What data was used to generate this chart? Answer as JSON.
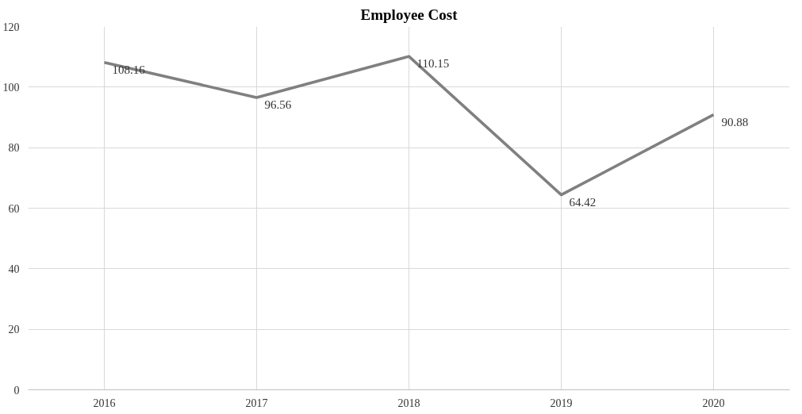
{
  "chart_data": {
    "type": "line",
    "title": "Employee Cost",
    "categories": [
      "2016",
      "2017",
      "2018",
      "2019",
      "2020"
    ],
    "series": [
      {
        "color": "#808080",
        "values": [
          108.16,
          96.56,
          110.15,
          64.42,
          90.88
        ]
      }
    ],
    "ylim": [
      0,
      120
    ],
    "yticks": [
      0,
      20,
      40,
      60,
      80,
      100,
      120
    ],
    "grid": true,
    "data_labels": true,
    "marker": "none",
    "line_style": "solid"
  }
}
